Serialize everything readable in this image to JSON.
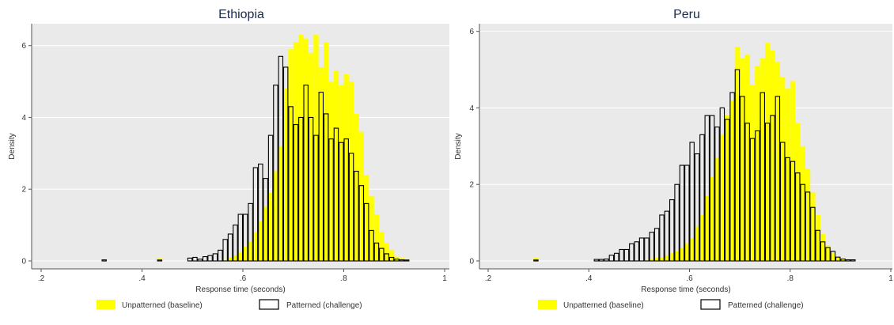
{
  "chart_data": [
    {
      "type": "bar",
      "title": "Ethiopia",
      "xlabel": "Response time (seconds)",
      "ylabel": "Density",
      "xlim": [
        0.2,
        1.0
      ],
      "ylim": [
        0,
        6.5
      ],
      "xticks": [
        ".2",
        ".4",
        ".6",
        ".8",
        "1"
      ],
      "yticks": [
        "0",
        "2",
        "4",
        "6"
      ],
      "bin_width": 0.01,
      "grid": true,
      "legend_position": "bottom",
      "series": [
        {
          "name": "Unpatterned (baseline)",
          "style": "filled",
          "color": "#ffff00",
          "x": [
            0.325,
            0.435,
            0.495,
            0.505,
            0.515,
            0.525,
            0.535,
            0.545,
            0.555,
            0.565,
            0.575,
            0.585,
            0.595,
            0.605,
            0.615,
            0.625,
            0.635,
            0.645,
            0.655,
            0.665,
            0.675,
            0.685,
            0.695,
            0.705,
            0.715,
            0.725,
            0.735,
            0.745,
            0.755,
            0.765,
            0.775,
            0.785,
            0.795,
            0.805,
            0.815,
            0.825,
            0.835,
            0.845,
            0.855,
            0.865,
            0.875,
            0.885,
            0.895,
            0.905,
            0.915,
            0.925
          ],
          "values": [
            0,
            0.08,
            0,
            0,
            0,
            0,
            0,
            0,
            0,
            0.03,
            0.1,
            0.15,
            0.25,
            0.4,
            0.55,
            0.8,
            1.1,
            1.5,
            1.9,
            2.5,
            3.2,
            4.8,
            5.9,
            6.1,
            6.3,
            6.2,
            5.8,
            6.3,
            5.4,
            6.1,
            5.0,
            5.3,
            4.9,
            5.2,
            5.0,
            4.1,
            3.6,
            2.4,
            1.8,
            1.3,
            0.8,
            0.5,
            0.3,
            0.12,
            0.08,
            0.04
          ]
        },
        {
          "name": "Patterned (challenge)",
          "style": "outline",
          "color": "#000000",
          "x": [
            0.325,
            0.435,
            0.495,
            0.505,
            0.515,
            0.525,
            0.535,
            0.545,
            0.555,
            0.565,
            0.575,
            0.585,
            0.595,
            0.605,
            0.615,
            0.625,
            0.635,
            0.645,
            0.655,
            0.665,
            0.675,
            0.685,
            0.695,
            0.705,
            0.715,
            0.725,
            0.735,
            0.745,
            0.755,
            0.765,
            0.775,
            0.785,
            0.795,
            0.805,
            0.815,
            0.825,
            0.835,
            0.845,
            0.855,
            0.865,
            0.875,
            0.885,
            0.895,
            0.905,
            0.915,
            0.925
          ],
          "values": [
            0.03,
            0,
            0.08,
            0.1,
            0.05,
            0.12,
            0.15,
            0.2,
            0.3,
            0.6,
            0.75,
            1.0,
            1.3,
            1.3,
            1.6,
            2.6,
            2.7,
            2.3,
            3.5,
            4.9,
            5.7,
            5.4,
            4.3,
            3.8,
            4.0,
            4.9,
            4.0,
            3.5,
            4.7,
            4.1,
            3.4,
            3.7,
            3.3,
            3.4,
            3.0,
            2.5,
            2.1,
            1.6,
            0.85,
            0.5,
            0.35,
            0.2,
            0.1,
            0.05,
            0.03,
            0
          ]
        }
      ]
    },
    {
      "type": "bar",
      "title": "Peru",
      "xlabel": "Response time (seconds)",
      "ylabel": "Density",
      "xlim": [
        0.2,
        1.0
      ],
      "ylim": [
        0,
        6.2
      ],
      "xticks": [
        ".2",
        ".4",
        ".6",
        ".8",
        "1"
      ],
      "yticks": [
        "0",
        "2",
        "4",
        "6"
      ],
      "bin_width": 0.01,
      "grid": true,
      "legend_position": "bottom",
      "series": [
        {
          "name": "Unpatterned (baseline)",
          "style": "filled",
          "color": "#ffff00",
          "x": [
            0.295,
            0.415,
            0.425,
            0.435,
            0.445,
            0.455,
            0.465,
            0.475,
            0.485,
            0.495,
            0.505,
            0.515,
            0.525,
            0.535,
            0.545,
            0.555,
            0.565,
            0.575,
            0.585,
            0.595,
            0.605,
            0.615,
            0.625,
            0.635,
            0.645,
            0.655,
            0.665,
            0.675,
            0.685,
            0.695,
            0.705,
            0.715,
            0.725,
            0.735,
            0.745,
            0.755,
            0.765,
            0.775,
            0.785,
            0.795,
            0.805,
            0.815,
            0.825,
            0.835,
            0.845,
            0.855,
            0.865,
            0.875,
            0.885,
            0.895,
            0.905,
            0.915,
            0.925
          ],
          "values": [
            0.08,
            0,
            0,
            0,
            0,
            0,
            0,
            0,
            0,
            0,
            0,
            0.02,
            0.04,
            0.08,
            0.1,
            0.15,
            0.2,
            0.25,
            0.35,
            0.45,
            0.6,
            0.9,
            1.2,
            1.7,
            2.2,
            2.7,
            3.3,
            3.8,
            4.2,
            5.6,
            5.3,
            5.4,
            4.6,
            5.1,
            5.3,
            5.7,
            5.5,
            5.2,
            4.8,
            4.5,
            4.7,
            3.6,
            3.0,
            2.4,
            1.8,
            1.2,
            0.7,
            0.4,
            0.2,
            0.1,
            0.05,
            0.02,
            0
          ]
        },
        {
          "name": "Patterned (challenge)",
          "style": "outline",
          "color": "#000000",
          "x": [
            0.295,
            0.415,
            0.425,
            0.435,
            0.445,
            0.455,
            0.465,
            0.475,
            0.485,
            0.495,
            0.505,
            0.515,
            0.525,
            0.535,
            0.545,
            0.555,
            0.565,
            0.575,
            0.585,
            0.595,
            0.605,
            0.615,
            0.625,
            0.635,
            0.645,
            0.655,
            0.665,
            0.675,
            0.685,
            0.695,
            0.705,
            0.715,
            0.725,
            0.735,
            0.745,
            0.755,
            0.765,
            0.775,
            0.785,
            0.795,
            0.805,
            0.815,
            0.825,
            0.835,
            0.845,
            0.855,
            0.865,
            0.875,
            0.885,
            0.895,
            0.905,
            0.915,
            0.925
          ],
          "values": [
            0,
            0.04,
            0.04,
            0.05,
            0.15,
            0.2,
            0.3,
            0.3,
            0.45,
            0.5,
            0.6,
            0.6,
            0.75,
            0.85,
            1.2,
            1.3,
            1.6,
            2.0,
            2.5,
            2.5,
            3.1,
            2.8,
            3.3,
            3.8,
            3.8,
            3.5,
            4.0,
            3.7,
            4.4,
            5.0,
            4.3,
            3.6,
            3.2,
            3.4,
            4.4,
            3.6,
            3.8,
            4.3,
            3.1,
            2.7,
            2.6,
            2.3,
            2.0,
            1.8,
            1.4,
            0.8,
            0.5,
            0.35,
            0.25,
            0.1,
            0.05,
            0.03,
            0.03
          ]
        }
      ]
    }
  ]
}
